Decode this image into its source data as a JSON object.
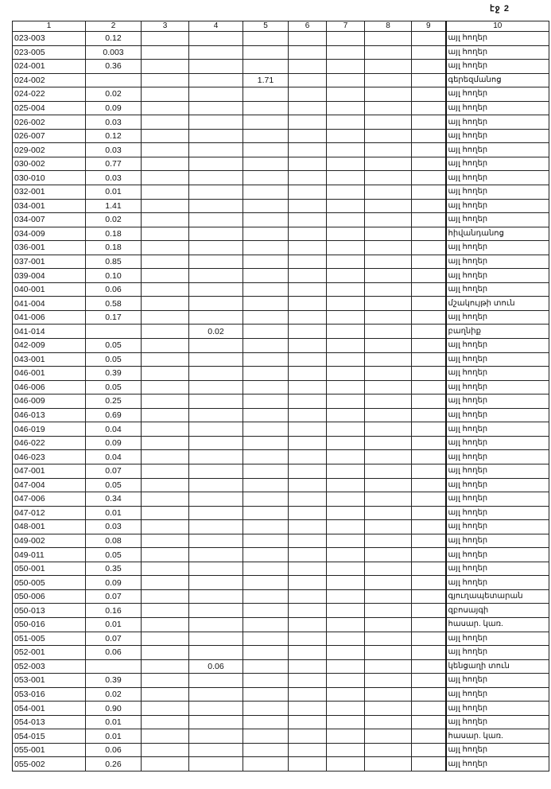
{
  "page_label": "էջ 2",
  "columns": [
    "1",
    "2",
    "3",
    "4",
    "5",
    "6",
    "7",
    "8",
    "9",
    "10"
  ],
  "rows": [
    [
      "023-003",
      "0.12",
      "",
      "",
      "",
      "",
      "",
      "",
      "",
      "այլ հողեր"
    ],
    [
      "023-005",
      "0.003",
      "",
      "",
      "",
      "",
      "",
      "",
      "",
      "այլ հողեր"
    ],
    [
      "024-001",
      "0.36",
      "",
      "",
      "",
      "",
      "",
      "",
      "",
      "այլ հողեր"
    ],
    [
      "024-002",
      "",
      "",
      "",
      "1.71",
      "",
      "",
      "",
      "",
      "գերեզմանոց"
    ],
    [
      "024-022",
      "0.02",
      "",
      "",
      "",
      "",
      "",
      "",
      "",
      "այլ հողեր"
    ],
    [
      "025-004",
      "0.09",
      "",
      "",
      "",
      "",
      "",
      "",
      "",
      "այլ հողեր"
    ],
    [
      "026-002",
      "0.03",
      "",
      "",
      "",
      "",
      "",
      "",
      "",
      "այլ հողեր"
    ],
    [
      "026-007",
      "0.12",
      "",
      "",
      "",
      "",
      "",
      "",
      "",
      "այլ հողեր"
    ],
    [
      "029-002",
      "0.03",
      "",
      "",
      "",
      "",
      "",
      "",
      "",
      "այլ հողեր"
    ],
    [
      "030-002",
      "0.77",
      "",
      "",
      "",
      "",
      "",
      "",
      "",
      "այլ հողեր"
    ],
    [
      "030-010",
      "0.03",
      "",
      "",
      "",
      "",
      "",
      "",
      "",
      "այլ հողեր"
    ],
    [
      "032-001",
      "0.01",
      "",
      "",
      "",
      "",
      "",
      "",
      "",
      "այլ հողեր"
    ],
    [
      "034-001",
      "1.41",
      "",
      "",
      "",
      "",
      "",
      "",
      "",
      "այլ հողեր"
    ],
    [
      "034-007",
      "0.02",
      "",
      "",
      "",
      "",
      "",
      "",
      "",
      "այլ հողեր"
    ],
    [
      "034-009",
      "0.18",
      "",
      "",
      "",
      "",
      "",
      "",
      "",
      "հիվանդանոց"
    ],
    [
      "036-001",
      "0.18",
      "",
      "",
      "",
      "",
      "",
      "",
      "",
      "այլ հողեր"
    ],
    [
      "037-001",
      "0.85",
      "",
      "",
      "",
      "",
      "",
      "",
      "",
      "այլ հողեր"
    ],
    [
      "039-004",
      "0.10",
      "",
      "",
      "",
      "",
      "",
      "",
      "",
      "այլ հողեր"
    ],
    [
      "040-001",
      "0.06",
      "",
      "",
      "",
      "",
      "",
      "",
      "",
      "այլ հողեր"
    ],
    [
      "041-004",
      "0.58",
      "",
      "",
      "",
      "",
      "",
      "",
      "",
      "մշակույթի տուն"
    ],
    [
      "041-006",
      "0.17",
      "",
      "",
      "",
      "",
      "",
      "",
      "",
      "այլ հողեր"
    ],
    [
      "041-014",
      "",
      "",
      "0.02",
      "",
      "",
      "",
      "",
      "",
      "բաղնիք"
    ],
    [
      "042-009",
      "0.05",
      "",
      "",
      "",
      "",
      "",
      "",
      "",
      "այլ հողեր"
    ],
    [
      "043-001",
      "0.05",
      "",
      "",
      "",
      "",
      "",
      "",
      "",
      "այլ հողեր"
    ],
    [
      "046-001",
      "0.39",
      "",
      "",
      "",
      "",
      "",
      "",
      "",
      "այլ հողեր"
    ],
    [
      "046-006",
      "0.05",
      "",
      "",
      "",
      "",
      "",
      "",
      "",
      "այլ հողեր"
    ],
    [
      "046-009",
      "0.25",
      "",
      "",
      "",
      "",
      "",
      "",
      "",
      "այլ հողեր"
    ],
    [
      "046-013",
      "0.69",
      "",
      "",
      "",
      "",
      "",
      "",
      "",
      "այլ հողեր"
    ],
    [
      "046-019",
      "0.04",
      "",
      "",
      "",
      "",
      "",
      "",
      "",
      "այլ հողեր"
    ],
    [
      "046-022",
      "0.09",
      "",
      "",
      "",
      "",
      "",
      "",
      "",
      "այլ հողեր"
    ],
    [
      "046-023",
      "0.04",
      "",
      "",
      "",
      "",
      "",
      "",
      "",
      "այլ հողեր"
    ],
    [
      "047-001",
      "0.07",
      "",
      "",
      "",
      "",
      "",
      "",
      "",
      "այլ հողեր"
    ],
    [
      "047-004",
      "0.05",
      "",
      "",
      "",
      "",
      "",
      "",
      "",
      "այլ հողեր"
    ],
    [
      "047-006",
      "0.34",
      "",
      "",
      "",
      "",
      "",
      "",
      "",
      "այլ հողեր"
    ],
    [
      "047-012",
      "0.01",
      "",
      "",
      "",
      "",
      "",
      "",
      "",
      "այլ հողեր"
    ],
    [
      "048-001",
      "0.03",
      "",
      "",
      "",
      "",
      "",
      "",
      "",
      "այլ հողեր"
    ],
    [
      "049-002",
      "0.08",
      "",
      "",
      "",
      "",
      "",
      "",
      "",
      "այլ հողեր"
    ],
    [
      "049-011",
      "0.05",
      "",
      "",
      "",
      "",
      "",
      "",
      "",
      "այլ հողեր"
    ],
    [
      "050-001",
      "0.35",
      "",
      "",
      "",
      "",
      "",
      "",
      "",
      "այլ հողեր"
    ],
    [
      "050-005",
      "0.09",
      "",
      "",
      "",
      "",
      "",
      "",
      "",
      "այլ հողեր"
    ],
    [
      "050-006",
      "0.07",
      "",
      "",
      "",
      "",
      "",
      "",
      "",
      "գյուղապետարան"
    ],
    [
      "050-013",
      "0.16",
      "",
      "",
      "",
      "",
      "",
      "",
      "",
      "զբոսայգի"
    ],
    [
      "050-016",
      "0.01",
      "",
      "",
      "",
      "",
      "",
      "",
      "",
      "հասար. կառ."
    ],
    [
      "051-005",
      "0.07",
      "",
      "",
      "",
      "",
      "",
      "",
      "",
      "այլ հողեր"
    ],
    [
      "052-001",
      "0.06",
      "",
      "",
      "",
      "",
      "",
      "",
      "",
      "այլ հողեր"
    ],
    [
      "052-003",
      "",
      "",
      "0.06",
      "",
      "",
      "",
      "",
      "",
      "կենցաղի տուն"
    ],
    [
      "053-001",
      "0.39",
      "",
      "",
      "",
      "",
      "",
      "",
      "",
      "այլ հողեր"
    ],
    [
      "053-016",
      "0.02",
      "",
      "",
      "",
      "",
      "",
      "",
      "",
      "այլ հողեր"
    ],
    [
      "054-001",
      "0.90",
      "",
      "",
      "",
      "",
      "",
      "",
      "",
      "այլ հողեր"
    ],
    [
      "054-013",
      "0.01",
      "",
      "",
      "",
      "",
      "",
      "",
      "",
      "այլ հողեր"
    ],
    [
      "054-015",
      "0.01",
      "",
      "",
      "",
      "",
      "",
      "",
      "",
      "հասար. կառ."
    ],
    [
      "055-001",
      "0.06",
      "",
      "",
      "",
      "",
      "",
      "",
      "",
      "այլ հողեր"
    ],
    [
      "055-002",
      "0.26",
      "",
      "",
      "",
      "",
      "",
      "",
      "",
      "այլ հողեր"
    ]
  ]
}
